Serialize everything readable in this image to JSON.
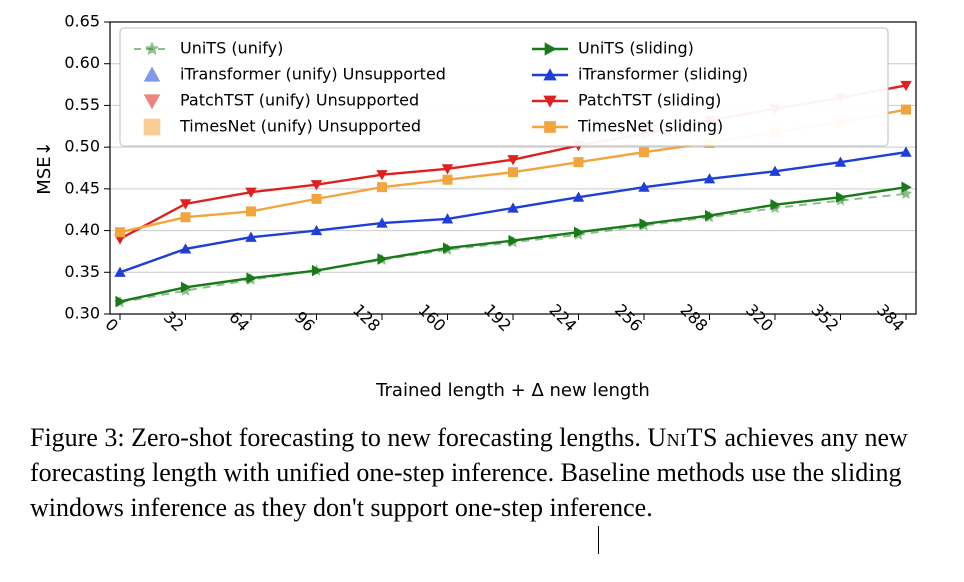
{
  "chart": {
    "type": "line",
    "background_color": "#ffffff",
    "grid_color": "#cccccc",
    "axis_color": "#000000",
    "xlabel": "Trained length + Δ new length",
    "ylabel": "MSE↓",
    "label_fontsize": 18,
    "tick_fontsize": 16,
    "xlim": [
      0,
      384
    ],
    "ylim": [
      0.3,
      0.65
    ],
    "xtick_vals": [
      0,
      32,
      64,
      96,
      128,
      160,
      192,
      224,
      256,
      288,
      320,
      352,
      384
    ],
    "xtick_rotation": 45,
    "ytick_vals": [
      0.3,
      0.35,
      0.4,
      0.45,
      0.5,
      0.55,
      0.6,
      0.65
    ],
    "legend": {
      "loc": "upper-left",
      "ncols": 2,
      "fontsize": 16,
      "frame_color": "#bfbfbf",
      "frame_fill": "#ffffff"
    },
    "series": [
      {
        "key": "units_unify",
        "label": "UniTS (unify)",
        "color": "#2e8b2e",
        "alpha": 0.55,
        "linestyle": "dashed",
        "linewidth": 2.0,
        "marker": "star",
        "markersize": 9,
        "legend_col": 0,
        "y": [
          0.314,
          0.328,
          0.341,
          0.352,
          0.365,
          0.377,
          0.386,
          0.395,
          0.406,
          0.416,
          0.427,
          0.436,
          0.444
        ]
      },
      {
        "key": "itransformer_unify",
        "label": "iTransformer (unify) Unsupported",
        "color": "#1f3fd6",
        "alpha": 0.55,
        "linestyle": "none",
        "linewidth": 0,
        "marker": "triangle-up",
        "markersize": 10,
        "legend_col": 0,
        "y": null
      },
      {
        "key": "patchtst_unify",
        "label": "PatchTST (unify) Unsupported",
        "color": "#e02020",
        "alpha": 0.55,
        "linestyle": "none",
        "linewidth": 0,
        "marker": "triangle-down",
        "markersize": 10,
        "legend_col": 0,
        "y": null
      },
      {
        "key": "timesnet_unify",
        "label": "TimesNet (unify) Unsupported",
        "color": "#f2a53c",
        "alpha": 0.55,
        "linestyle": "none",
        "linewidth": 0,
        "marker": "square",
        "markersize": 10,
        "legend_col": 0,
        "y": null
      },
      {
        "key": "units_sliding",
        "label": "UniTS (sliding)",
        "color": "#1a7a1a",
        "alpha": 1.0,
        "linestyle": "solid",
        "linewidth": 2.4,
        "marker": "triangle-right",
        "markersize": 8,
        "legend_col": 1,
        "y": [
          0.315,
          0.332,
          0.343,
          0.352,
          0.366,
          0.379,
          0.388,
          0.398,
          0.408,
          0.418,
          0.431,
          0.44,
          0.452
        ]
      },
      {
        "key": "itransformer_sliding",
        "label": "iTransformer (sliding)",
        "color": "#1f3fd6",
        "alpha": 1.0,
        "linestyle": "solid",
        "linewidth": 2.4,
        "marker": "triangle-up",
        "markersize": 8,
        "legend_col": 1,
        "y": [
          0.35,
          0.378,
          0.392,
          0.4,
          0.409,
          0.414,
          0.427,
          0.44,
          0.452,
          0.462,
          0.471,
          0.482,
          0.494
        ]
      },
      {
        "key": "patchtst_sliding",
        "label": "PatchTST (sliding)",
        "color": "#e02020",
        "alpha": 1.0,
        "linestyle": "solid",
        "linewidth": 2.4,
        "marker": "triangle-down",
        "markersize": 8,
        "legend_col": 1,
        "y": [
          0.39,
          0.432,
          0.446,
          0.455,
          0.467,
          0.474,
          0.485,
          0.502,
          0.516,
          0.532,
          0.546,
          0.559,
          0.574
        ]
      },
      {
        "key": "timesnet_sliding",
        "label": "TimesNet (sliding)",
        "color": "#f2a53c",
        "alpha": 1.0,
        "linestyle": "solid",
        "linewidth": 2.4,
        "marker": "square",
        "markersize": 7,
        "legend_col": 1,
        "y": [
          0.398,
          0.416,
          0.423,
          0.438,
          0.452,
          0.461,
          0.47,
          0.482,
          0.494,
          0.505,
          0.518,
          0.53,
          0.545
        ]
      }
    ]
  },
  "caption": {
    "prefix": "Figure 3: ",
    "text": "Zero-shot forecasting to new forecasting lengths. UNITS achieves any new forecasting length with unified one-step inference. Baseline methods use the sliding windows inference as they don't support one-step inference.",
    "sc_word": "UniTS",
    "fontsize": 26,
    "fontfamily": "serif",
    "color": "#000000"
  }
}
